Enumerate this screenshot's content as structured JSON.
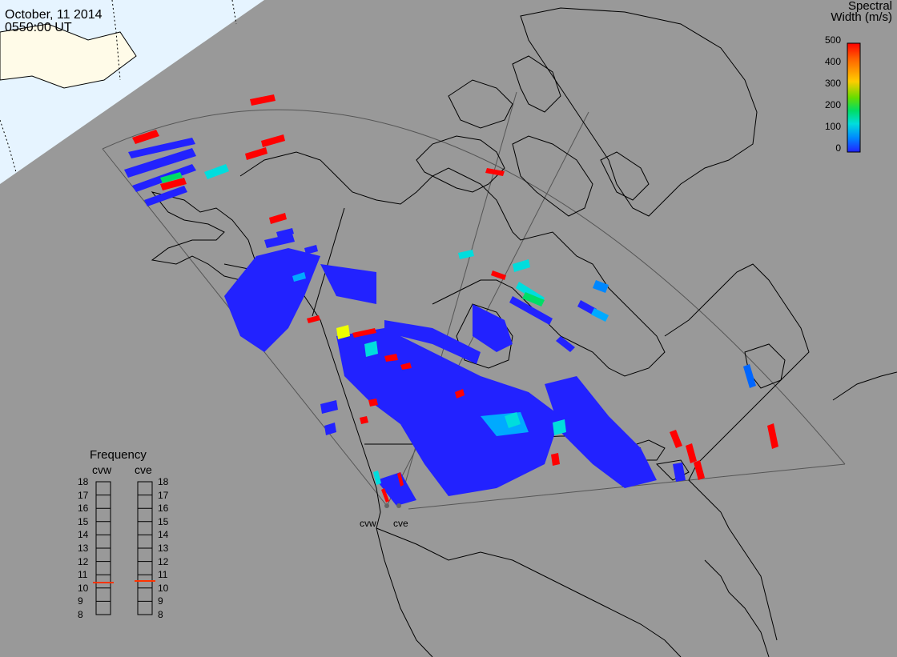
{
  "title": {
    "date": "October, 11 2014",
    "time": "0550:00 UT"
  },
  "colorbar": {
    "title_line1": "Spectral",
    "title_line2": "Width (m/s)",
    "ticks": [
      "500",
      "400",
      "300",
      "200",
      "100",
      "0"
    ],
    "gradient": [
      "#ff0000",
      "#ff6600",
      "#ffcc00",
      "#66dd00",
      "#00dd66",
      "#00dddd",
      "#0088ff",
      "#2222ff"
    ]
  },
  "frequency_panel": {
    "title": "Frequency",
    "radars": [
      "cvw",
      "cve"
    ],
    "ticks": [
      "18",
      "17",
      "16",
      "15",
      "14",
      "13",
      "12",
      "11",
      "10",
      "9",
      "8"
    ],
    "marker_color": "#ff3300"
  },
  "sites": [
    "cvw",
    "cve"
  ],
  "colors": {
    "background": "#999999",
    "daylight": "#e6f4ff",
    "low_width": "#2222ff",
    "mid_width": "#00dddd",
    "high_width": "#ff0000"
  }
}
